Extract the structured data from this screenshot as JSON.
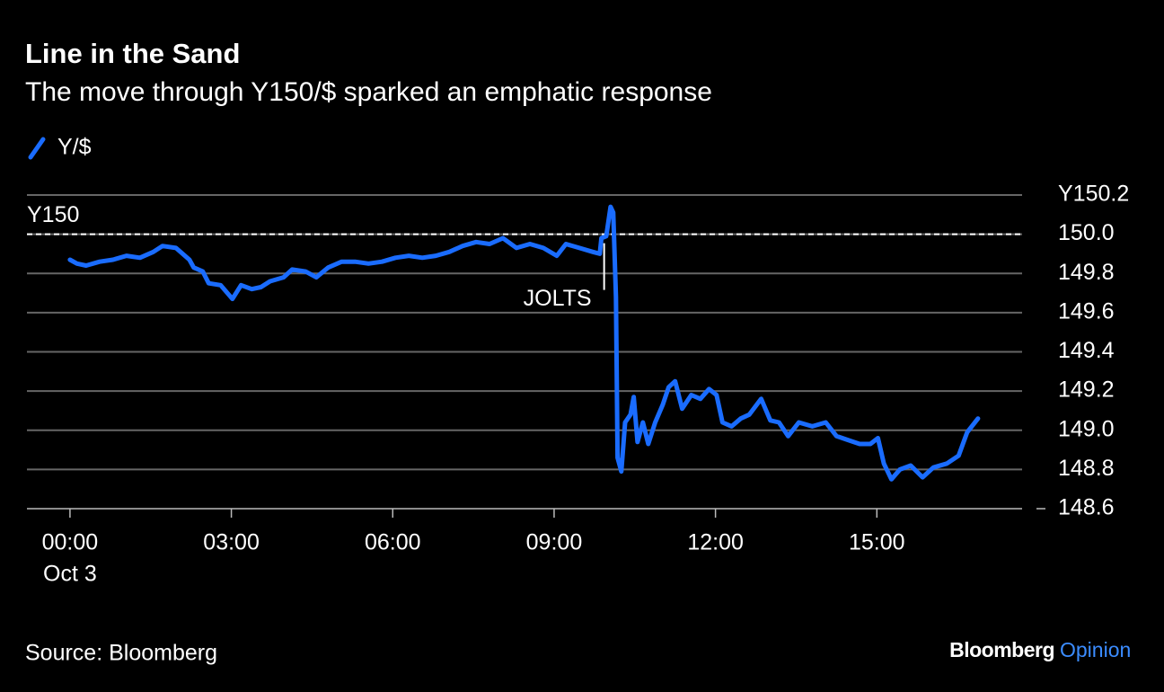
{
  "chart_data": {
    "type": "line",
    "title": "Line in the Sand",
    "subtitle": "The move through Y150/$ sparked an emphatic response",
    "source": "Source: Bloomberg",
    "brand": "Bloomberg",
    "brand_suffix": "Opinion",
    "x": [
      0,
      0.13,
      0.3,
      0.55,
      0.8,
      1.05,
      1.3,
      1.55,
      1.72,
      1.97,
      2.22,
      2.3,
      2.47,
      2.58,
      2.8,
      3.02,
      3.18,
      3.38,
      3.55,
      3.72,
      3.97,
      4.13,
      4.38,
      4.58,
      4.8,
      5.05,
      5.3,
      5.55,
      5.8,
      6.05,
      6.3,
      6.55,
      6.8,
      7.05,
      7.3,
      7.55,
      7.8,
      8.05,
      8.3,
      8.55,
      8.8,
      9.05,
      9.22,
      9.47,
      9.72,
      9.85,
      9.88,
      9.97,
      10.05,
      10.1,
      10.15,
      10.18,
      10.25,
      10.32,
      10.42,
      10.48,
      10.55,
      10.65,
      10.75,
      10.88,
      11.02,
      11.13,
      11.25,
      11.38,
      11.55,
      11.72,
      11.88,
      12.02,
      12.13,
      12.3,
      12.47,
      12.63,
      12.85,
      13.02,
      13.18,
      13.35,
      13.55,
      13.8,
      14.05,
      14.25,
      14.47,
      14.68,
      14.88,
      15.02,
      15.13,
      15.27,
      15.43,
      15.63,
      15.85,
      16.05,
      16.3,
      16.52,
      16.68,
      16.88
    ],
    "series": [
      {
        "name": "Y/$",
        "color": "#1a6cff",
        "values": [
          149.87,
          149.85,
          149.84,
          149.86,
          149.87,
          149.89,
          149.88,
          149.91,
          149.94,
          149.93,
          149.87,
          149.83,
          149.81,
          149.75,
          149.74,
          149.67,
          149.74,
          149.72,
          149.73,
          149.76,
          149.78,
          149.82,
          149.81,
          149.78,
          149.83,
          149.86,
          149.86,
          149.85,
          149.86,
          149.88,
          149.89,
          149.88,
          149.89,
          149.91,
          149.94,
          149.96,
          149.95,
          149.98,
          149.93,
          149.95,
          149.93,
          149.89,
          149.95,
          149.93,
          149.91,
          149.9,
          149.98,
          149.99,
          150.14,
          150.11,
          149.68,
          148.86,
          148.79,
          149.04,
          149.08,
          149.17,
          148.94,
          149.04,
          148.93,
          149.04,
          149.13,
          149.22,
          149.25,
          149.11,
          149.18,
          149.16,
          149.21,
          149.18,
          149.04,
          149.02,
          149.06,
          149.08,
          149.16,
          149.05,
          149.04,
          148.97,
          149.04,
          149.02,
          149.04,
          148.97,
          148.95,
          148.93,
          148.93,
          148.96,
          148.83,
          148.75,
          148.8,
          148.82,
          148.76,
          148.81,
          148.83,
          148.87,
          148.99,
          149.06
        ]
      }
    ],
    "xlim": [
      -0.8,
      17.7
    ],
    "xticks": [
      {
        "value": 0,
        "label": "00:00"
      },
      {
        "value": 3,
        "label": "03:00"
      },
      {
        "value": 6,
        "label": "06:00"
      },
      {
        "value": 9,
        "label": "09:00"
      },
      {
        "value": 12,
        "label": "12:00"
      },
      {
        "value": 15,
        "label": "15:00"
      }
    ],
    "x_date_label": "Oct 3",
    "ylim": [
      148.6,
      150.2
    ],
    "yticks": [
      148.6,
      {
        "value": 148.8,
        "label": "148.8"
      },
      {
        "value": 149,
        "label": "149.0"
      },
      {
        "value": 149.2,
        "label": "149.2"
      },
      149.4,
      149.6,
      149.8,
      {
        "value": 150,
        "label": "150.0"
      },
      {
        "value": 150.2,
        "label": "Y150.2"
      }
    ],
    "grid": true,
    "ref_line": {
      "value": 150,
      "label": "Y150"
    },
    "annotation": {
      "text": "JOLTS",
      "x": 9.93
    }
  }
}
